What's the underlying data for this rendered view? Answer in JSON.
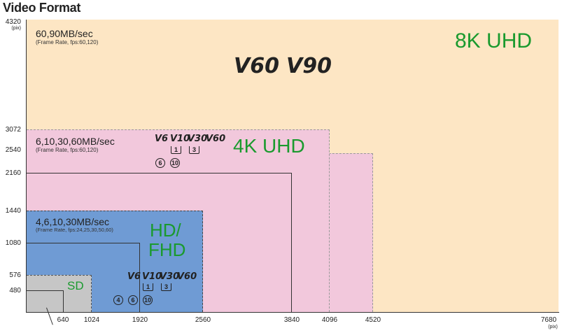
{
  "title": "Video Format",
  "y_axis": {
    "unit": "(pix)",
    "top_label": "4320",
    "ticks": [
      "3072",
      "2540",
      "2160",
      "1440",
      "1080",
      "576",
      "480"
    ]
  },
  "x_axis": {
    "unit": "(pix)",
    "ticks": [
      "640",
      "1024",
      "1920",
      "2560",
      "3840",
      "4096",
      "4520",
      "7680"
    ]
  },
  "regions": {
    "uhd8k": {
      "name": "8K UHD",
      "rate": "60,90MB/sec",
      "rate_note": "(Frame Rate, fps:60,120)",
      "video_class": [
        "V60",
        "V90"
      ],
      "color": "#fde6c4"
    },
    "uhd4k": {
      "name": "4K UHD",
      "rate": "6,10,30,60MB/sec",
      "rate_note": "(Frame Rate, fps:60,120)",
      "video_class": [
        "V6",
        "V10",
        "V30",
        "V60"
      ],
      "uhs_class": [
        "1",
        "3"
      ],
      "speed_class": [
        "6",
        "10"
      ],
      "color": "#f2c8dc"
    },
    "hd": {
      "name_line1": "HD/",
      "name_line2": "FHD",
      "rate": "4,6,10,30MB/sec",
      "rate_note": "(Frame Rate, fps:24,25,30,50,60)",
      "video_class": [
        "V6",
        "V10",
        "V30",
        "V60"
      ],
      "uhs_class": [
        "1",
        "3"
      ],
      "speed_class": [
        "4",
        "6",
        "10"
      ],
      "color": "#6f9bd4"
    },
    "sd": {
      "name": "SD",
      "color": "#c6c6c6"
    }
  }
}
